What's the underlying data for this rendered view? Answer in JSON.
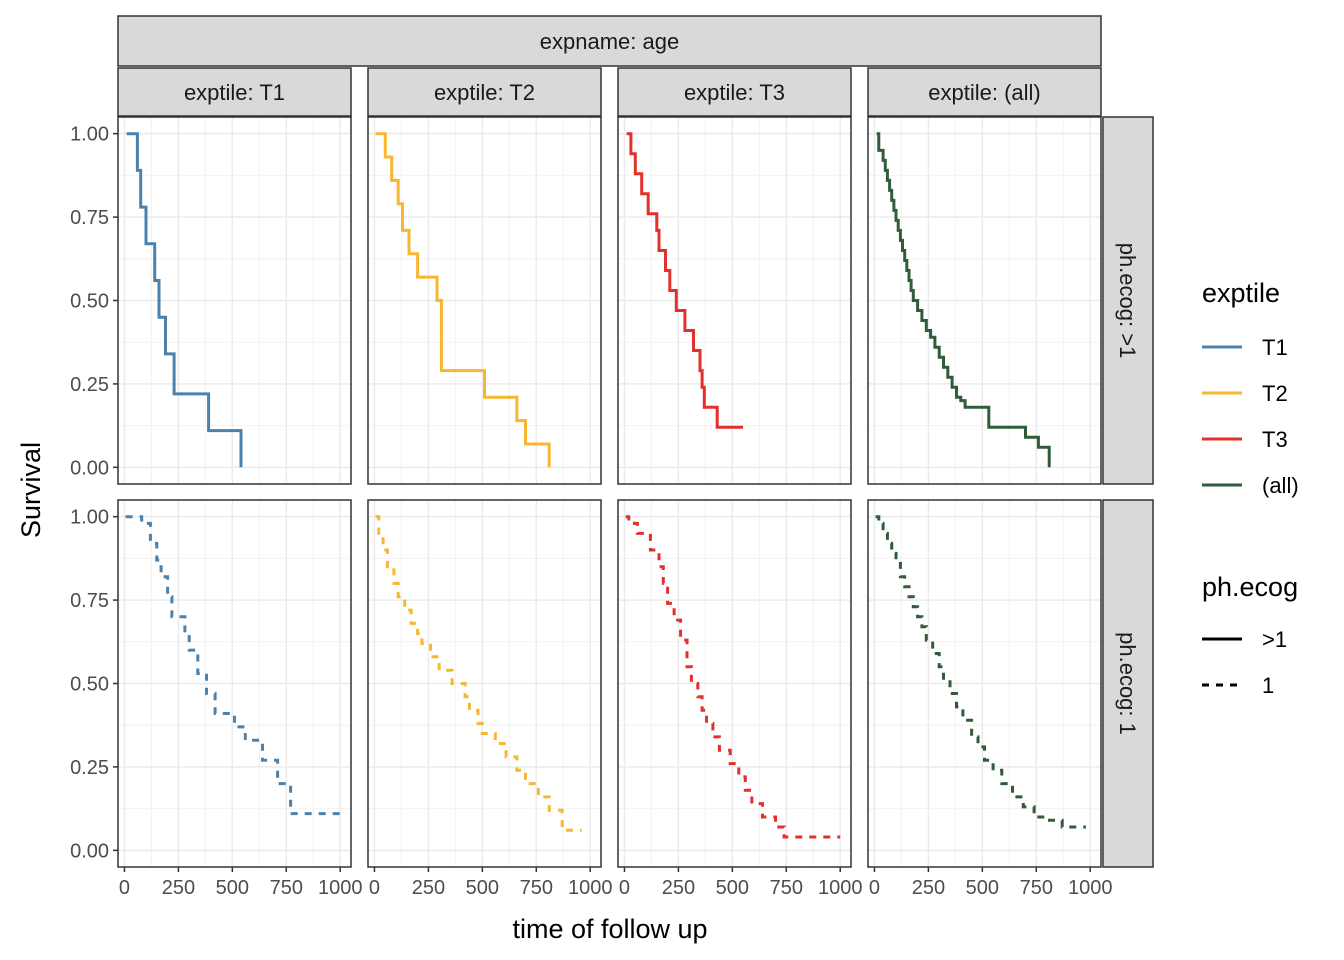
{
  "chart_data": {
    "type": "line",
    "subtype": "kaplan-meier step curves, faceted grid",
    "title": "",
    "top_strip": "expname: age",
    "xlabel": "time of follow up",
    "ylabel": "Survival",
    "xlim": [
      -30,
      1050
    ],
    "ylim": [
      -0.05,
      1.05
    ],
    "x_ticks": [
      0,
      250,
      500,
      750,
      1000
    ],
    "x_tick_labels": [
      "0",
      "250",
      "500",
      "750",
      "1000"
    ],
    "y_ticks": [
      0,
      0.25,
      0.5,
      0.75,
      1.0
    ],
    "y_tick_labels": [
      "0.00",
      "0.25",
      "0.50",
      "0.75",
      "1.00"
    ],
    "grid": true,
    "columns": [
      {
        "key": "T1",
        "strip": "exptile: T1"
      },
      {
        "key": "T2",
        "strip": "exptile: T2"
      },
      {
        "key": "T3",
        "strip": "exptile: T3"
      },
      {
        "key": "all",
        "strip": "exptile: (all)"
      }
    ],
    "rows": [
      {
        "key": "gt1",
        "strip": "ph.ecog: >1",
        "linetype": "solid"
      },
      {
        "key": "eq1",
        "strip": "ph.ecog: 1",
        "linetype": "dashed"
      }
    ],
    "colors": {
      "T1": "#4a82ad",
      "T2": "#f7b731",
      "T3": "#e3302a",
      "all": "#2f5d3a"
    },
    "legend": {
      "placement": "right",
      "exptile_title": "exptile",
      "exptile_items": [
        {
          "key": "T1",
          "label": "T1"
        },
        {
          "key": "T2",
          "label": "T2"
        },
        {
          "key": "T3",
          "label": "T3"
        },
        {
          "key": "all",
          "label": "(all)"
        }
      ],
      "ecog_title": "ph.ecog",
      "ecog_items": [
        {
          "label": ">1",
          "linetype": "solid"
        },
        {
          "label": "1",
          "linetype": "dashed"
        }
      ]
    },
    "series": [
      {
        "exptile": "T1",
        "ecog": ">1",
        "x": [
          10,
          60,
          75,
          100,
          140,
          160,
          190,
          230,
          390,
          540
        ],
        "y": [
          1.0,
          0.89,
          0.78,
          0.67,
          0.56,
          0.45,
          0.34,
          0.22,
          0.11,
          0.0
        ]
      },
      {
        "exptile": "T2",
        "ecog": ">1",
        "x": [
          5,
          50,
          80,
          110,
          130,
          160,
          200,
          290,
          310,
          510,
          660,
          700,
          810
        ],
        "y": [
          1.0,
          0.93,
          0.86,
          0.79,
          0.71,
          0.64,
          0.57,
          0.5,
          0.29,
          0.21,
          0.14,
          0.07,
          0.0
        ]
      },
      {
        "exptile": "T3",
        "ecog": ">1",
        "x": [
          10,
          30,
          50,
          80,
          110,
          150,
          160,
          190,
          210,
          240,
          280,
          320,
          350,
          360,
          370,
          430,
          550
        ],
        "y": [
          1.0,
          0.94,
          0.88,
          0.82,
          0.76,
          0.71,
          0.65,
          0.59,
          0.53,
          0.47,
          0.41,
          0.35,
          0.29,
          0.24,
          0.18,
          0.12,
          0.12
        ]
      },
      {
        "exptile": "all",
        "ecog": ">1",
        "x": [
          10,
          20,
          40,
          50,
          60,
          70,
          80,
          90,
          100,
          110,
          120,
          130,
          140,
          150,
          160,
          170,
          180,
          200,
          220,
          240,
          260,
          280,
          300,
          320,
          340,
          360,
          380,
          400,
          420,
          480,
          530,
          650,
          700,
          760,
          810
        ],
        "y": [
          1.0,
          0.95,
          0.92,
          0.89,
          0.86,
          0.83,
          0.8,
          0.77,
          0.74,
          0.71,
          0.68,
          0.65,
          0.62,
          0.59,
          0.56,
          0.53,
          0.5,
          0.47,
          0.44,
          0.41,
          0.39,
          0.36,
          0.33,
          0.3,
          0.27,
          0.24,
          0.21,
          0.2,
          0.18,
          0.18,
          0.12,
          0.12,
          0.09,
          0.06,
          0.0
        ]
      },
      {
        "exptile": "T1",
        "ecog": "1",
        "x": [
          5,
          80,
          120,
          150,
          170,
          200,
          220,
          280,
          300,
          340,
          380,
          420,
          510,
          560,
          640,
          710,
          770,
          1000
        ],
        "y": [
          1.0,
          0.98,
          0.92,
          0.87,
          0.82,
          0.76,
          0.7,
          0.65,
          0.6,
          0.53,
          0.47,
          0.41,
          0.37,
          0.33,
          0.27,
          0.2,
          0.11,
          0.11
        ]
      },
      {
        "exptile": "T2",
        "ecog": "1",
        "x": [
          5,
          20,
          40,
          60,
          90,
          110,
          140,
          170,
          200,
          220,
          260,
          300,
          360,
          420,
          440,
          480,
          500,
          560,
          610,
          660,
          700,
          760,
          810,
          870,
          960
        ],
        "y": [
          1.0,
          0.95,
          0.9,
          0.85,
          0.8,
          0.76,
          0.72,
          0.68,
          0.65,
          0.62,
          0.58,
          0.54,
          0.5,
          0.46,
          0.42,
          0.38,
          0.35,
          0.32,
          0.28,
          0.24,
          0.2,
          0.16,
          0.12,
          0.06,
          0.06
        ]
      },
      {
        "exptile": "T3",
        "ecog": "1",
        "x": [
          5,
          20,
          60,
          120,
          160,
          180,
          200,
          230,
          260,
          290,
          310,
          340,
          360,
          380,
          410,
          440,
          490,
          530,
          560,
          590,
          640,
          700,
          740,
          1000
        ],
        "y": [
          1.0,
          0.98,
          0.95,
          0.9,
          0.85,
          0.8,
          0.74,
          0.69,
          0.63,
          0.55,
          0.5,
          0.46,
          0.42,
          0.38,
          0.34,
          0.3,
          0.26,
          0.22,
          0.18,
          0.14,
          0.1,
          0.07,
          0.04,
          0.04
        ]
      },
      {
        "exptile": "all",
        "ecog": "1",
        "x": [
          5,
          20,
          40,
          60,
          80,
          100,
          120,
          140,
          160,
          180,
          200,
          220,
          240,
          270,
          300,
          320,
          350,
          380,
          410,
          450,
          480,
          510,
          550,
          590,
          640,
          690,
          740,
          800,
          870,
          980
        ],
        "y": [
          1.0,
          0.98,
          0.95,
          0.92,
          0.89,
          0.86,
          0.82,
          0.79,
          0.76,
          0.73,
          0.7,
          0.67,
          0.63,
          0.59,
          0.55,
          0.51,
          0.47,
          0.43,
          0.39,
          0.34,
          0.31,
          0.27,
          0.24,
          0.2,
          0.16,
          0.13,
          0.1,
          0.09,
          0.07,
          0.07
        ]
      }
    ]
  }
}
